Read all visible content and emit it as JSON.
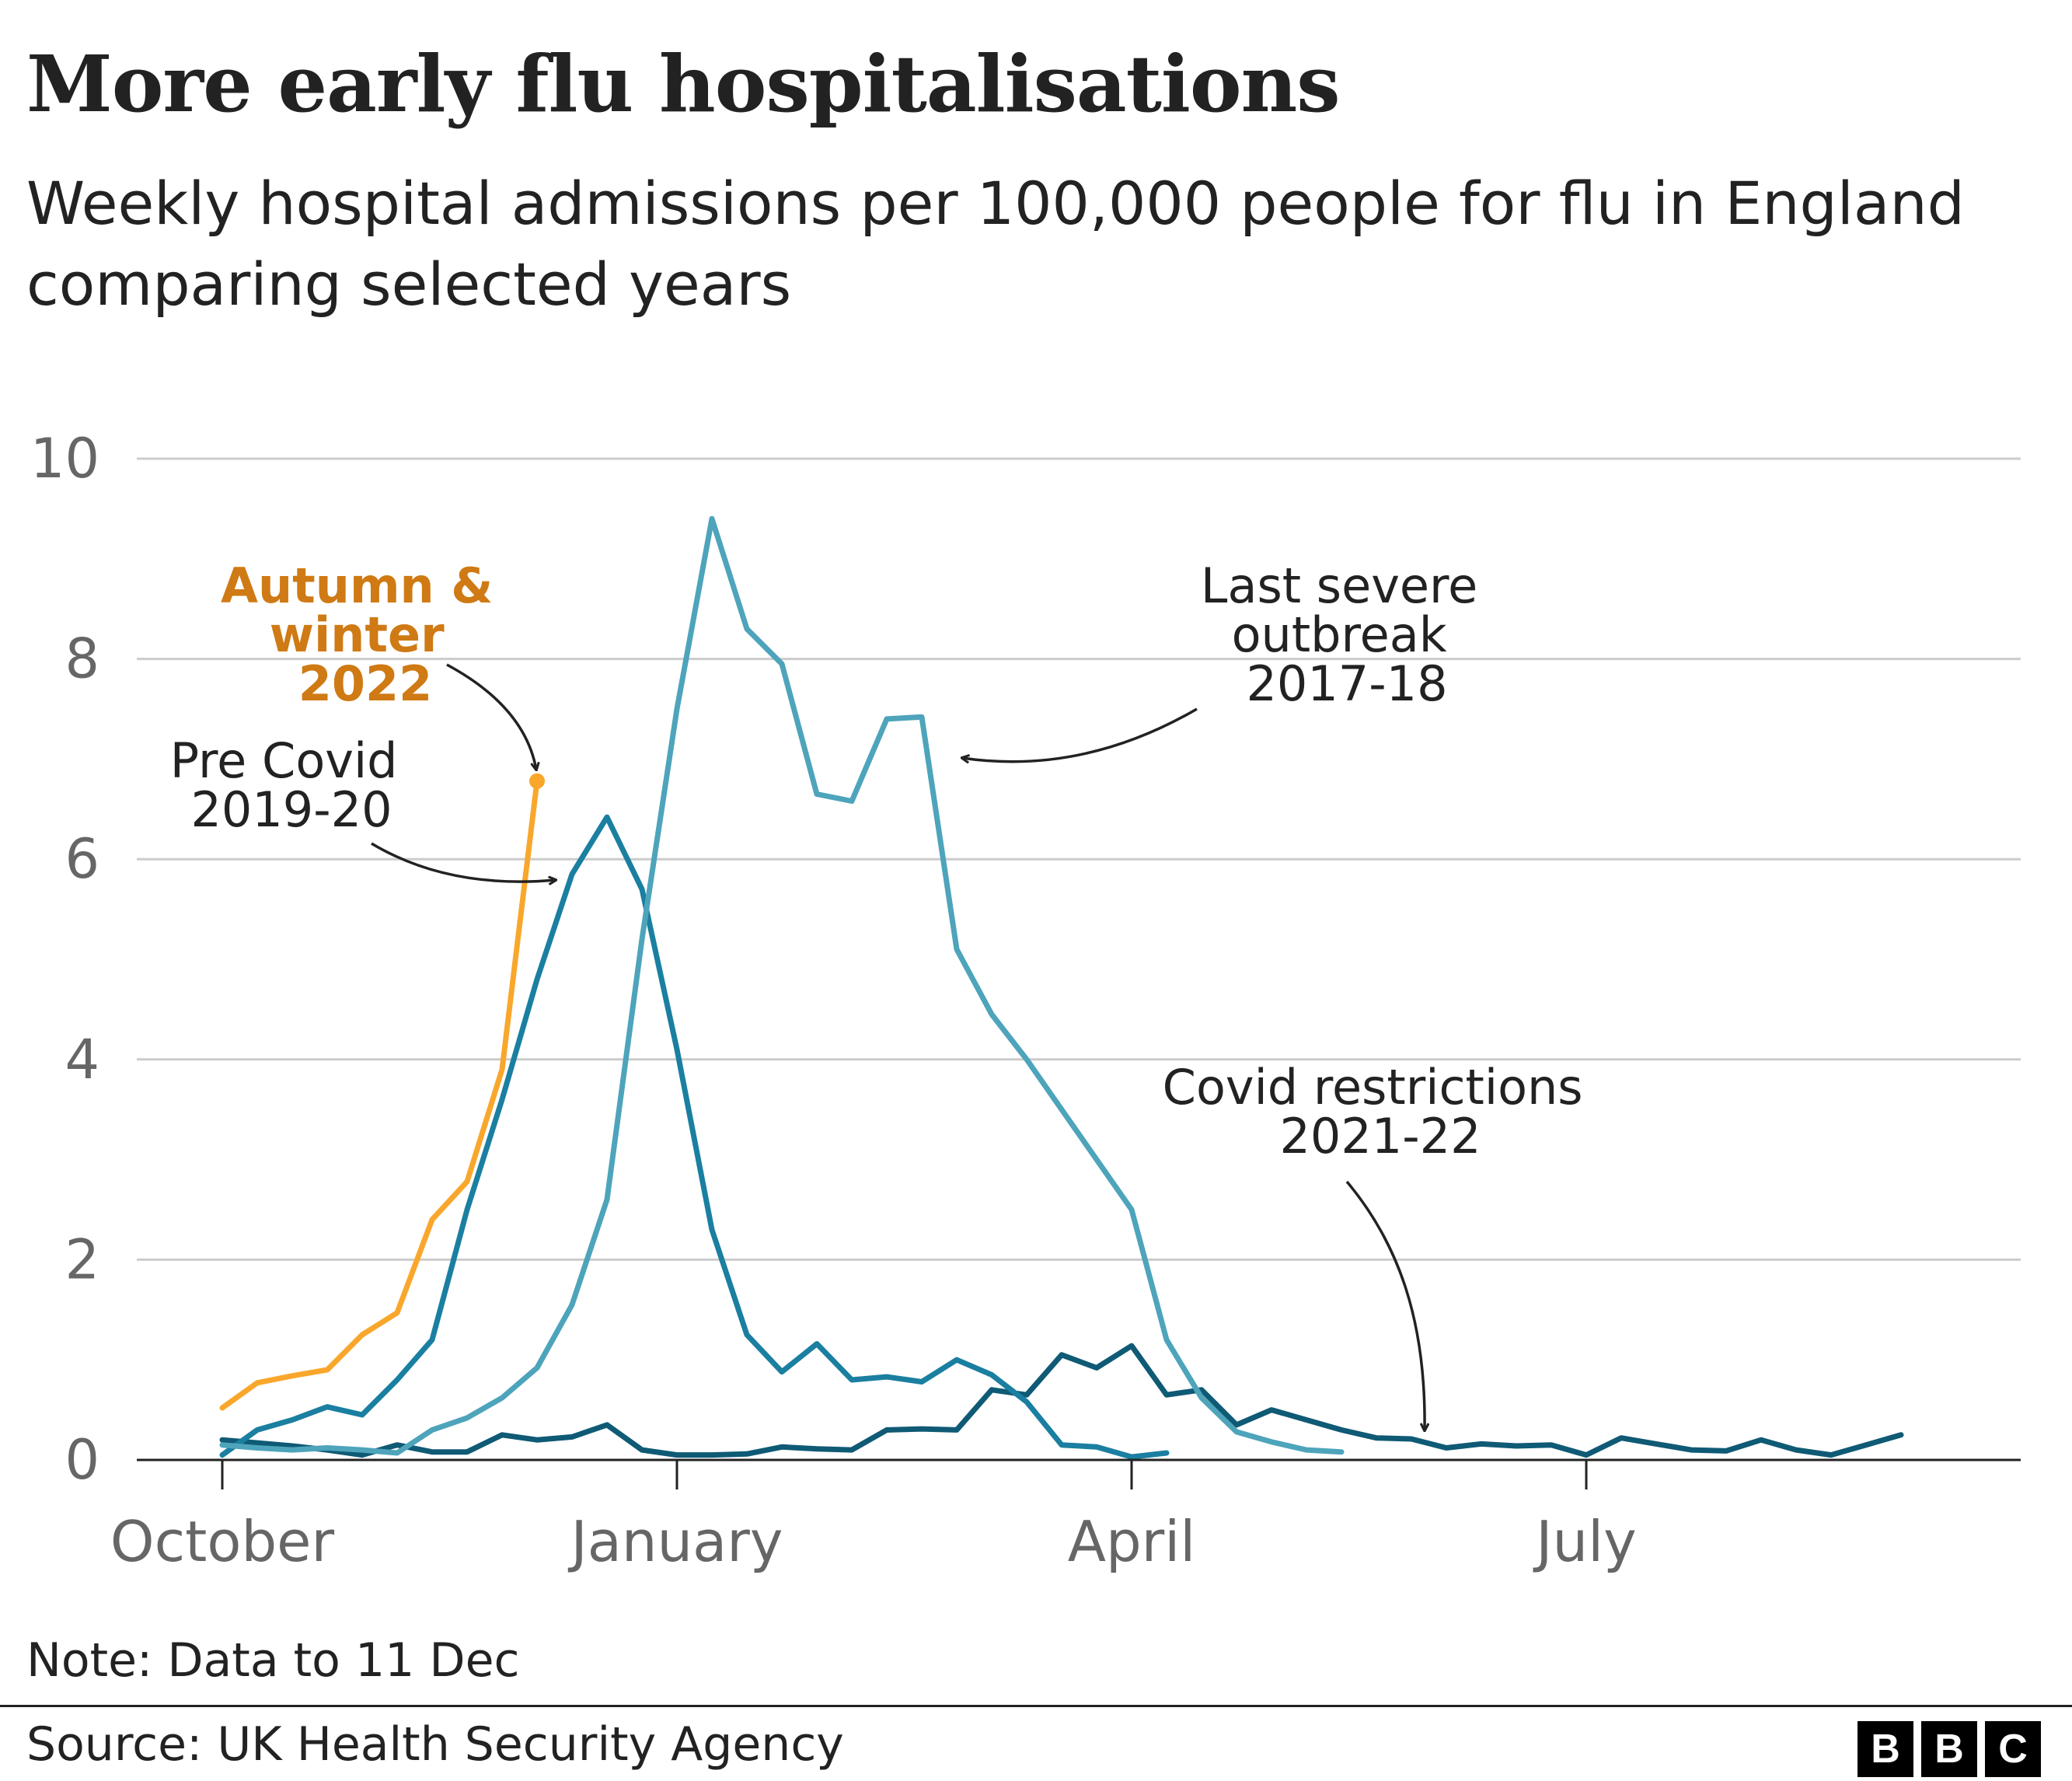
{
  "header": {
    "title": "More early flu hospitalisations",
    "subtitle": "Weekly hospital admissions per 100,000 people for flu in England comparing selected years"
  },
  "footer": {
    "note": "Note: Data to 11 Dec",
    "source": "Source: UK Health Security Agency",
    "logo": [
      "B",
      "B",
      "C"
    ]
  },
  "annotations": {
    "autumn_2022": [
      "Autumn &",
      "winter",
      "2022"
    ],
    "pre_covid": [
      "Pre Covid",
      "2019-20"
    ],
    "severe": [
      "Last severe",
      "outbreak",
      "2017-18"
    ],
    "covid": [
      "Covid restrictions",
      "2021-22"
    ]
  },
  "chart_data": {
    "type": "line",
    "title": "",
    "xlabel": "",
    "ylabel": "",
    "x_unit": "week of season (week 0 = start of October)",
    "x_ticks": [
      {
        "week": 0,
        "label": "October"
      },
      {
        "week": 13,
        "label": "January"
      },
      {
        "week": 26,
        "label": "April"
      },
      {
        "week": 39,
        "label": "July"
      }
    ],
    "xlim": [
      0,
      52
    ],
    "ylim": [
      0,
      10
    ],
    "y_ticks": [
      0,
      2,
      4,
      6,
      8,
      10
    ],
    "grid": true,
    "legend": "none (direct labels)",
    "series": [
      {
        "name": "Covid restrictions 2021-22",
        "color": "#0f5a75",
        "x": [
          0,
          1,
          2,
          3,
          4,
          5,
          6,
          7,
          8,
          9,
          10,
          11,
          12,
          13,
          14,
          15,
          16,
          17,
          18,
          19,
          20,
          21,
          22,
          23,
          24,
          25,
          26,
          27,
          28,
          29,
          30,
          31,
          32,
          33,
          34,
          35,
          36,
          37,
          38,
          39,
          40,
          41,
          42,
          43,
          44,
          45,
          46,
          47,
          48
        ],
        "y": [
          0.2,
          0.17,
          0.14,
          0.1,
          0.05,
          0.15,
          0.08,
          0.08,
          0.25,
          0.2,
          0.23,
          0.35,
          0.1,
          0.05,
          0.05,
          0.06,
          0.13,
          0.11,
          0.1,
          0.3,
          0.31,
          0.3,
          0.7,
          0.65,
          1.05,
          0.92,
          1.14,
          0.65,
          0.7,
          0.35,
          0.5,
          0.4,
          0.3,
          0.22,
          0.21,
          0.12,
          0.16,
          0.14,
          0.15,
          0.05,
          0.22,
          0.16,
          0.1,
          0.09,
          0.2,
          0.1,
          0.05,
          0.15,
          0.25
        ]
      },
      {
        "name": "Pre Covid 2019-20",
        "color": "#1a7fa0",
        "x": [
          0,
          1,
          2,
          3,
          4,
          5,
          6,
          7,
          8,
          9,
          10,
          11,
          12,
          13,
          14,
          15,
          16,
          17,
          18,
          19,
          20,
          21,
          22,
          23,
          24,
          25,
          26,
          27
        ],
        "y": [
          0.05,
          0.3,
          0.4,
          0.53,
          0.45,
          0.8,
          1.2,
          2.5,
          3.6,
          4.8,
          5.85,
          6.42,
          5.7,
          4.1,
          2.3,
          1.25,
          0.88,
          1.16,
          0.8,
          0.83,
          0.78,
          1.0,
          0.85,
          0.58,
          0.15,
          0.13,
          0.03,
          0.07
        ]
      },
      {
        "name": "Last severe outbreak 2017-18",
        "color": "#4da4bb",
        "x": [
          0,
          1,
          2,
          3,
          4,
          5,
          6,
          7,
          8,
          9,
          10,
          11,
          12,
          13,
          14,
          15,
          16,
          17,
          18,
          19,
          20,
          21,
          22,
          23,
          24,
          25,
          26,
          27,
          28,
          29,
          30,
          31,
          32
        ],
        "y": [
          0.15,
          0.12,
          0.1,
          0.12,
          0.1,
          0.07,
          0.3,
          0.42,
          0.62,
          0.92,
          1.55,
          2.6,
          5.2,
          7.5,
          9.4,
          8.3,
          7.95,
          6.65,
          6.58,
          7.4,
          7.42,
          5.1,
          4.45,
          4.0,
          3.5,
          3.0,
          2.5,
          1.2,
          0.62,
          0.28,
          0.18,
          0.1,
          0.08
        ]
      },
      {
        "name": "Autumn & winter 2022",
        "color": "#f9a72c",
        "x": [
          0,
          1,
          2,
          3,
          4,
          5,
          6,
          7,
          8,
          9
        ],
        "y": [
          0.52,
          0.77,
          0.84,
          0.9,
          1.25,
          1.47,
          2.4,
          2.78,
          3.9,
          6.78
        ]
      }
    ]
  }
}
